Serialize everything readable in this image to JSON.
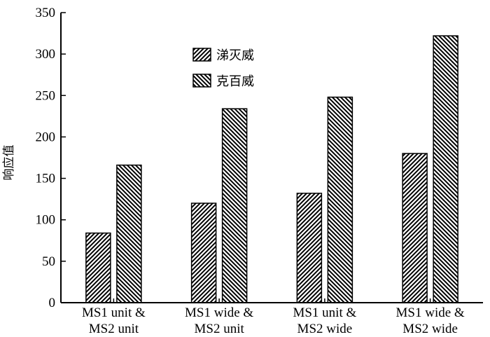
{
  "chart_data": {
    "type": "bar",
    "categories": [
      [
        "MS1 unit &",
        "MS2 unit"
      ],
      [
        "MS1 wide &",
        "MS2 unit"
      ],
      [
        "MS1 unit &",
        "MS2 wide"
      ],
      [
        "MS1 wide &",
        "MS2 wide"
      ]
    ],
    "series": [
      {
        "name": "涕灭威",
        "values": [
          84,
          120,
          132,
          180
        ],
        "pattern": "hatch-right"
      },
      {
        "name": "克百威",
        "values": [
          166,
          234,
          248,
          322
        ],
        "pattern": "hatch-left"
      }
    ],
    "title": "",
    "xlabel": "",
    "ylabel": "响应值",
    "ylim": [
      0,
      350
    ],
    "yticks": [
      "0",
      "50",
      "100",
      "150",
      "200",
      "250",
      "300",
      "350"
    ],
    "grid": false,
    "legend_position": "top-center",
    "colors": {
      "bar_fill": "#ffffff",
      "stroke": "#000000"
    }
  }
}
